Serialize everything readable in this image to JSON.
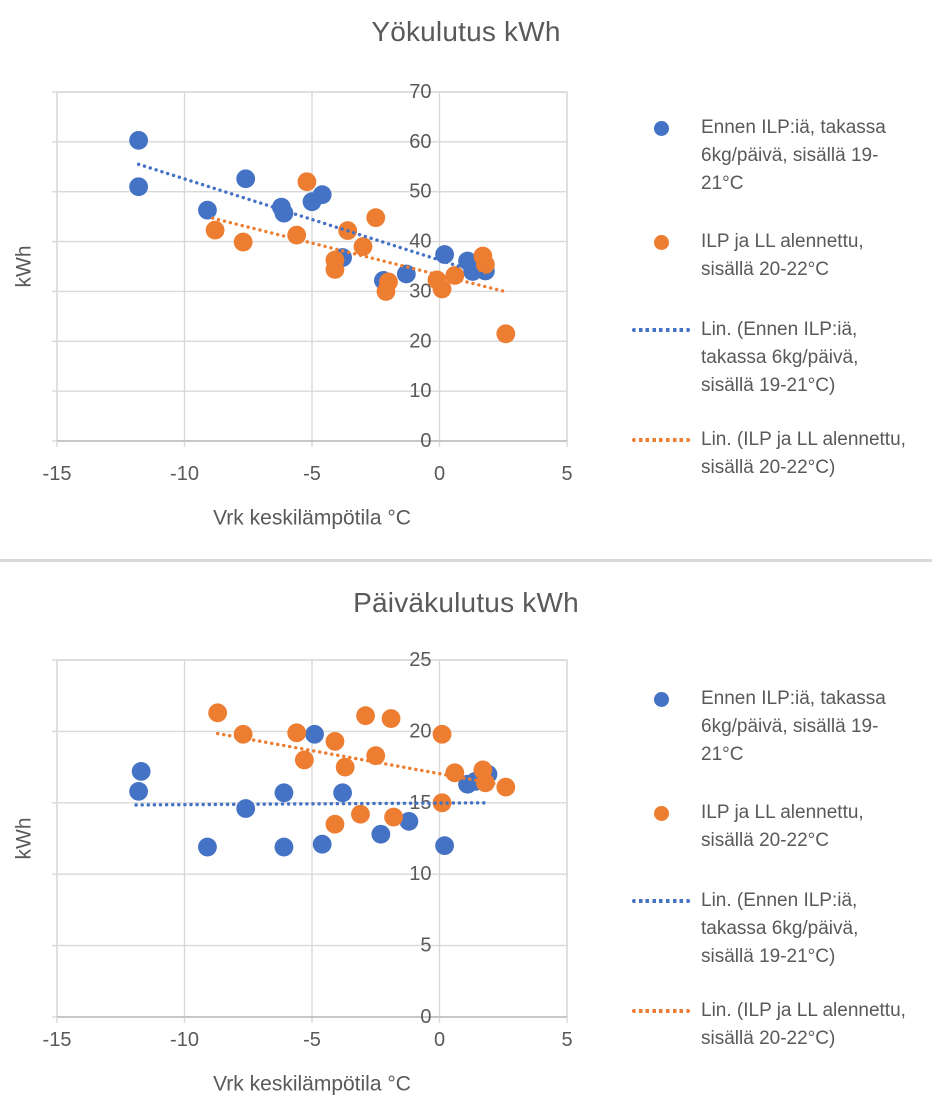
{
  "colors": {
    "blue": "#4472C4",
    "orange": "#ED7D31",
    "grid": "#D9D9D9",
    "axis_line": "#BFBFBF",
    "text": "#595959",
    "divider": "#D9D9D9"
  },
  "chart_data": [
    {
      "type": "scatter",
      "title": "Yökulutus kWh",
      "xlabel": "Vrk keskilämpötila °C",
      "ylabel": "kWh",
      "xlim": [
        -15,
        5
      ],
      "ylim": [
        0,
        70
      ],
      "xticks": [
        -15,
        -10,
        -5,
        0,
        5
      ],
      "yticks": [
        0,
        10,
        20,
        30,
        40,
        50,
        60,
        70
      ],
      "grid": true,
      "legend_position": "right",
      "series": [
        {
          "name": "Ennen ILP:iä, takassa 6kg/päivä, sisällä 19-21°C",
          "kind": "scatter",
          "color_key": "blue",
          "points": [
            [
              -11.8,
              60.3
            ],
            [
              -11.8,
              51.0
            ],
            [
              -9.1,
              46.3
            ],
            [
              -7.6,
              52.6
            ],
            [
              -6.2,
              46.9
            ],
            [
              -6.1,
              45.7
            ],
            [
              -5.0,
              48.0
            ],
            [
              -4.6,
              49.4
            ],
            [
              -3.8,
              36.8
            ],
            [
              -2.2,
              32.2
            ],
            [
              -1.3,
              33.5
            ],
            [
              0.2,
              37.4
            ],
            [
              1.1,
              36.1
            ],
            [
              1.3,
              34.0
            ],
            [
              1.8,
              34.1
            ]
          ]
        },
        {
          "name": "ILP ja LL alennettu, sisällä 20-22°C",
          "kind": "scatter",
          "color_key": "orange",
          "points": [
            [
              -8.8,
              42.3
            ],
            [
              -7.7,
              39.9
            ],
            [
              -5.6,
              41.3
            ],
            [
              -5.2,
              52.0
            ],
            [
              -4.1,
              36.3
            ],
            [
              -4.1,
              34.4
            ],
            [
              -3.6,
              42.2
            ],
            [
              -3.0,
              39.0
            ],
            [
              -2.5,
              44.8
            ],
            [
              -2.0,
              31.9
            ],
            [
              -2.1,
              30.0
            ],
            [
              -0.1,
              32.3
            ],
            [
              0.1,
              30.5
            ],
            [
              0.6,
              33.2
            ],
            [
              1.7,
              37.1
            ],
            [
              1.8,
              35.4
            ],
            [
              2.6,
              21.5
            ]
          ]
        },
        {
          "name": "Lin. (Ennen ILP:iä, takassa 6kg/päivä, sisällä 19-21°C)",
          "kind": "trendline",
          "color_key": "blue",
          "points": [
            [
              -11.8,
              55.5
            ],
            [
              1.9,
              33.2
            ]
          ]
        },
        {
          "name": "Lin. (ILP ja LL alennettu, sisällä 20-22°C)",
          "kind": "trendline",
          "color_key": "orange",
          "points": [
            [
              -8.9,
              44.7
            ],
            [
              2.55,
              30.0
            ]
          ]
        }
      ]
    },
    {
      "type": "scatter",
      "title": "Päiväkulutus kWh",
      "xlabel": "Vrk keskilämpötila °C",
      "ylabel": "kWh",
      "xlim": [
        -15,
        5
      ],
      "ylim": [
        0,
        25
      ],
      "xticks": [
        -15,
        -10,
        -5,
        0,
        5
      ],
      "yticks": [
        0,
        5,
        10,
        15,
        20,
        25
      ],
      "grid": true,
      "legend_position": "right",
      "series": [
        {
          "name": "Ennen ILP:iä, takassa 6kg/päivä, sisällä 19-21°C",
          "kind": "scatter",
          "color_key": "blue",
          "points": [
            [
              -11.7,
              17.2
            ],
            [
              -11.8,
              15.8
            ],
            [
              -9.1,
              11.9
            ],
            [
              -7.6,
              14.6
            ],
            [
              -6.1,
              15.7
            ],
            [
              -6.1,
              11.9
            ],
            [
              -4.9,
              19.8
            ],
            [
              -4.6,
              12.1
            ],
            [
              -3.8,
              15.7
            ],
            [
              -2.3,
              12.8
            ],
            [
              -1.2,
              13.7
            ],
            [
              0.2,
              12.0
            ],
            [
              1.1,
              16.3
            ],
            [
              1.4,
              16.5
            ],
            [
              1.9,
              17.0
            ]
          ]
        },
        {
          "name": "ILP ja LL alennettu, sisällä 20-22°C",
          "kind": "scatter",
          "color_key": "orange",
          "points": [
            [
              -8.7,
              21.3
            ],
            [
              -7.7,
              19.8
            ],
            [
              -5.6,
              19.9
            ],
            [
              -5.3,
              18.0
            ],
            [
              -4.1,
              19.3
            ],
            [
              -4.1,
              13.5
            ],
            [
              -3.7,
              17.5
            ],
            [
              -3.1,
              14.2
            ],
            [
              -2.9,
              21.1
            ],
            [
              -2.5,
              18.3
            ],
            [
              -1.9,
              20.9
            ],
            [
              -1.8,
              14.0
            ],
            [
              0.1,
              19.8
            ],
            [
              0.1,
              15.0
            ],
            [
              0.6,
              17.1
            ],
            [
              1.7,
              17.3
            ],
            [
              1.8,
              16.4
            ],
            [
              2.6,
              16.1
            ]
          ]
        },
        {
          "name": "Lin. (Ennen ILP:iä, takassa 6kg/päivä, sisällä 19-21°C)",
          "kind": "trendline",
          "color_key": "blue",
          "points": [
            [
              -11.9,
              14.85
            ],
            [
              1.8,
              15.0
            ]
          ]
        },
        {
          "name": "Lin. (ILP ja LL alennettu, sisällä 20-22°C)",
          "kind": "trendline",
          "color_key": "orange",
          "points": [
            [
              -8.7,
              19.85
            ],
            [
              2.6,
              16.2
            ]
          ]
        }
      ]
    }
  ]
}
